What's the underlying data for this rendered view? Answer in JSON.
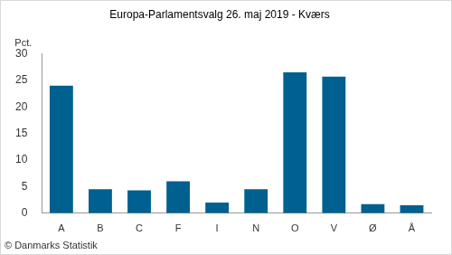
{
  "chart_data": {
    "type": "bar",
    "title": "Europa-Parlamentsvalg 26. maj 2019 - Kværs",
    "ylabel": "Pct.",
    "source": "© Danmarks Statistik",
    "categories": [
      "A",
      "B",
      "C",
      "F",
      "I",
      "N",
      "O",
      "V",
      "Ø",
      "Å"
    ],
    "values": [
      24.0,
      4.5,
      4.3,
      6.0,
      2.0,
      4.5,
      26.5,
      25.7,
      1.7,
      1.5
    ],
    "color": "#00608f",
    "ylim": [
      0,
      30
    ],
    "yticks": [
      0,
      5,
      10,
      15,
      20,
      25,
      30
    ],
    "grid": false
  }
}
